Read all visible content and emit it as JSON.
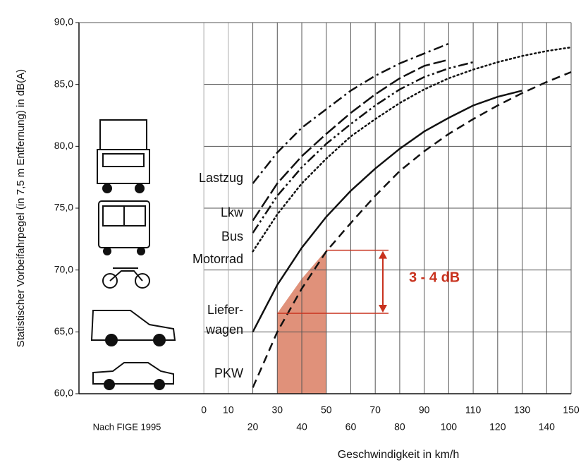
{
  "chart_data": {
    "type": "line",
    "y_label": "Statistischer Vorbeifahrpegel (in 7,5 m Entfernung) in dB(A)",
    "x_label": "Geschwindigkeit in km/h",
    "source": "Nach FIGE 1995",
    "xlim": [
      -51,
      150
    ],
    "xticks": [
      0,
      10,
      20,
      30,
      40,
      50,
      60,
      70,
      80,
      90,
      100,
      110,
      120,
      130,
      140,
      150
    ],
    "ylim": [
      60,
      90
    ],
    "yticks": [
      {
        "value": 60,
        "label": "60,0"
      },
      {
        "value": 65,
        "label": "65,0"
      },
      {
        "value": 70,
        "label": "70,0"
      },
      {
        "value": 75,
        "label": "75,0"
      },
      {
        "value": 80,
        "label": "80,0"
      },
      {
        "value": 85,
        "label": "85,0"
      },
      {
        "value": 90,
        "label": "90,0"
      }
    ],
    "grid": true,
    "series": [
      {
        "label": [
          "Lastzug"
        ],
        "style": "dashdot",
        "color": "#111111",
        "x": [
          20,
          30,
          40,
          50,
          60,
          70,
          80,
          90,
          100
        ],
        "values": [
          77,
          79.5,
          81.5,
          83,
          84.5,
          85.7,
          86.7,
          87.5,
          88.3
        ]
      },
      {
        "label": [
          "Lkw"
        ],
        "style": "longdash",
        "color": "#111111",
        "x": [
          20,
          30,
          40,
          50,
          60,
          70,
          80,
          90,
          100
        ],
        "values": [
          74,
          77,
          79.2,
          81,
          82.7,
          84.2,
          85.5,
          86.5,
          87
        ]
      },
      {
        "label": [
          "Bus"
        ],
        "style": "dashdotdot",
        "color": "#111111",
        "x": [
          20,
          30,
          40,
          50,
          60,
          70,
          80,
          90,
          100,
          110
        ],
        "values": [
          73,
          76,
          78.3,
          80.2,
          81.8,
          83.3,
          84.6,
          85.6,
          86.3,
          86.8
        ]
      },
      {
        "label": [
          "Motorrad"
        ],
        "style": "dotted",
        "color": "#111111",
        "x": [
          20,
          30,
          40,
          50,
          60,
          70,
          80,
          90,
          100,
          110,
          120,
          130,
          140,
          150
        ],
        "values": [
          71.5,
          74.5,
          77,
          79,
          80.8,
          82.2,
          83.5,
          84.6,
          85.5,
          86.2,
          86.8,
          87.3,
          87.7,
          88
        ]
      },
      {
        "label": [
          "Liefer-",
          "wagen"
        ],
        "style": "solid",
        "color": "#111111",
        "x": [
          20,
          30,
          40,
          50,
          60,
          70,
          80,
          90,
          100,
          110,
          120,
          130
        ],
        "values": [
          65,
          68.8,
          71.8,
          74.3,
          76.4,
          78.2,
          79.8,
          81.2,
          82.3,
          83.3,
          84,
          84.5
        ]
      },
      {
        "label": [
          "PKW"
        ],
        "style": "dashed",
        "color": "#111111",
        "x": [
          20,
          30,
          40,
          50,
          60,
          70,
          80,
          90,
          100,
          110,
          120,
          130,
          140,
          150
        ],
        "values": [
          60.5,
          65,
          68.5,
          71.5,
          73.8,
          76,
          78,
          79.6,
          81,
          82.2,
          83.3,
          84.3,
          85.2,
          86
        ]
      }
    ],
    "shade": {
      "color": "#e0917a",
      "x": [
        30,
        40,
        50
      ],
      "values": [
        66.5,
        69.3,
        71.6
      ]
    },
    "bracket": {
      "color": "#c8321e",
      "values": [
        71.6,
        66.5
      ],
      "label": "3 - 4 dB"
    }
  }
}
